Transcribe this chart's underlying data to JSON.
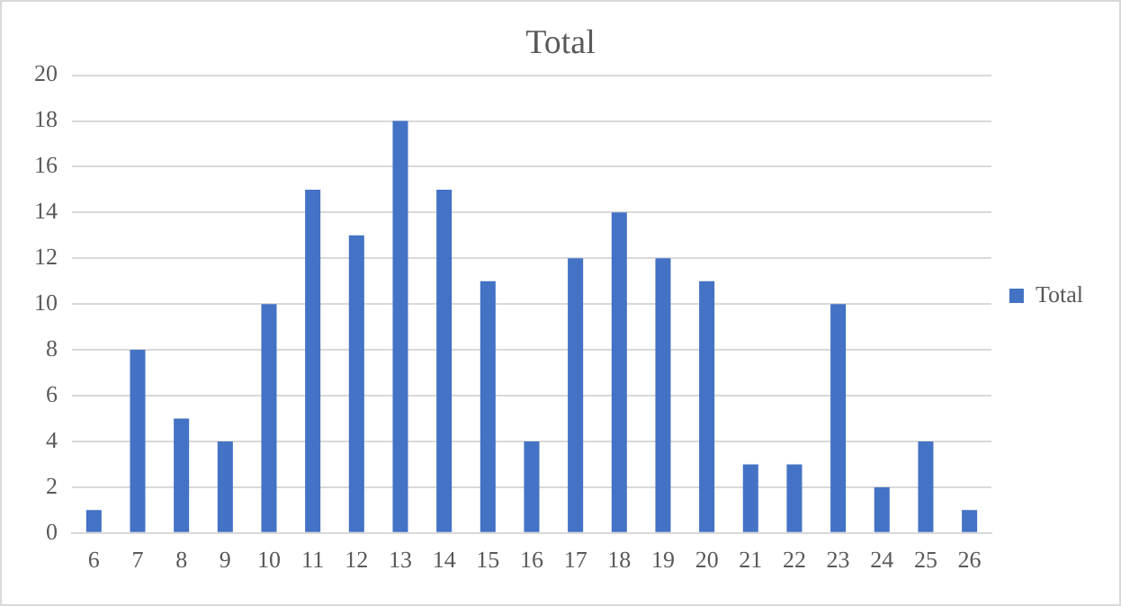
{
  "chart_data": {
    "type": "bar",
    "title": "Total",
    "categories": [
      "6",
      "7",
      "8",
      "9",
      "10",
      "11",
      "12",
      "13",
      "14",
      "15",
      "16",
      "17",
      "18",
      "19",
      "20",
      "21",
      "22",
      "23",
      "24",
      "25",
      "26"
    ],
    "series": [
      {
        "name": "Total",
        "color": "#4472c4",
        "values": [
          1,
          8,
          5,
          4,
          10,
          15,
          13,
          18,
          15,
          11,
          4,
          12,
          14,
          12,
          11,
          3,
          3,
          10,
          2,
          4,
          1
        ]
      }
    ],
    "ylim": [
      0,
      20
    ],
    "yticks": [
      0,
      2,
      4,
      6,
      8,
      10,
      12,
      14,
      16,
      18,
      20
    ],
    "grid": "y",
    "legend": "right"
  }
}
